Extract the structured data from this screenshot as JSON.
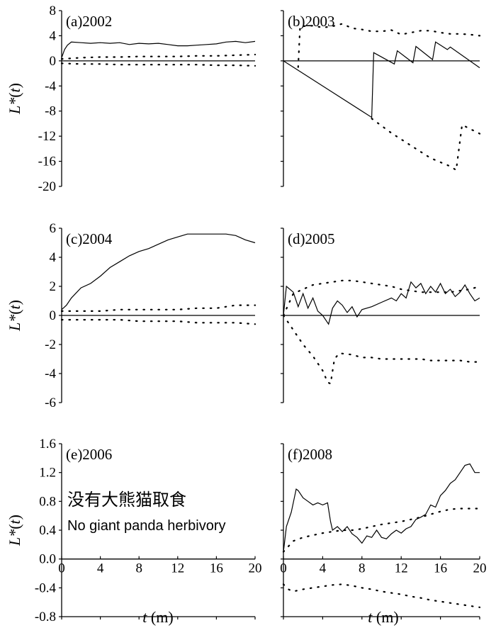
{
  "chart_data": [
    {
      "type": "line",
      "label": "(a)2002",
      "ylim": [
        -20,
        8
      ],
      "yticks": [
        "8",
        "4",
        "0",
        "-4",
        "-8",
        "-12",
        "-16",
        "-20"
      ],
      "xlim": [
        0,
        20
      ],
      "xticks": [],
      "series": [
        {
          "role": "L(t)",
          "style": "solid",
          "x": [
            0,
            0.3,
            0.6,
            1,
            2,
            3,
            4,
            5,
            6,
            7,
            8,
            9,
            10,
            11,
            12,
            13,
            14,
            15,
            16,
            17,
            18,
            19,
            20
          ],
          "y": [
            0.5,
            1.8,
            2.5,
            3.0,
            2.9,
            2.8,
            2.9,
            2.8,
            2.9,
            2.6,
            2.8,
            2.7,
            2.8,
            2.6,
            2.4,
            2.4,
            2.5,
            2.6,
            2.7,
            3.0,
            3.1,
            2.9,
            3.1
          ]
        },
        {
          "role": "upper envelope",
          "style": "dotted",
          "x": [
            0,
            2,
            4,
            6,
            8,
            10,
            12,
            14,
            16,
            18,
            20
          ],
          "y": [
            0.3,
            0.5,
            0.6,
            0.6,
            0.7,
            0.7,
            0.7,
            0.8,
            0.8,
            0.9,
            1.0
          ]
        },
        {
          "role": "lower envelope",
          "style": "dotted",
          "x": [
            0,
            2,
            4,
            6,
            8,
            10,
            12,
            14,
            16,
            18,
            20
          ],
          "y": [
            -0.4,
            -0.5,
            -0.5,
            -0.6,
            -0.6,
            -0.6,
            -0.6,
            -0.6,
            -0.7,
            -0.7,
            -0.8
          ]
        }
      ]
    },
    {
      "type": "line",
      "label": "(b)2003",
      "ylim": [
        -20,
        8
      ],
      "yticks": [],
      "xlim": [
        0,
        20
      ],
      "xticks": [],
      "series": [
        {
          "role": "L(t)",
          "style": "solid",
          "x": [
            0,
            9,
            9.2,
            11.3,
            11.6,
            13.2,
            13.5,
            15.2,
            15.5,
            16.7,
            17.0,
            20
          ],
          "y": [
            0,
            -9,
            1.3,
            -0.5,
            1.6,
            -0.3,
            2.3,
            0.2,
            3.0,
            1.8,
            2.2,
            -1.1
          ]
        },
        {
          "role": "upper envelope",
          "style": "dotted",
          "x": [
            1.5,
            1.7,
            3,
            4,
            5,
            6,
            7,
            8,
            9,
            10,
            11,
            12,
            13,
            14,
            15,
            16,
            17,
            18,
            19,
            20
          ],
          "y": [
            -1,
            5.5,
            5.6,
            5.3,
            5.5,
            5.9,
            5.2,
            5.0,
            4.7,
            4.7,
            4.9,
            4.2,
            4.5,
            4.8,
            4.8,
            4.5,
            4.3,
            4.3,
            4.2,
            4.0
          ]
        },
        {
          "role": "lower envelope",
          "style": "dotted",
          "x": [
            9,
            11,
            13,
            15,
            17,
            17.6,
            18.2,
            18.6,
            20
          ],
          "y": [
            -9.2,
            -11.5,
            -13.5,
            -15.5,
            -16.8,
            -17.4,
            -10.2,
            -10.5,
            -11.6
          ]
        }
      ]
    },
    {
      "type": "line",
      "label": "(c)2004",
      "ylim": [
        -6,
        6
      ],
      "yticks": [
        "6",
        "4",
        "2",
        "0",
        "-2",
        "-4",
        "-6"
      ],
      "xlim": [
        0,
        20
      ],
      "xticks": [],
      "series": [
        {
          "role": "L(t)",
          "style": "solid",
          "x": [
            0,
            0.5,
            1,
            2,
            3,
            4,
            5,
            6,
            7,
            8,
            9,
            10,
            11,
            12,
            13,
            14,
            15,
            16,
            17,
            18,
            19,
            20
          ],
          "y": [
            0.4,
            0.7,
            1.2,
            1.9,
            2.2,
            2.7,
            3.3,
            3.7,
            4.1,
            4.4,
            4.6,
            4.9,
            5.2,
            5.4,
            5.6,
            5.6,
            5.6,
            5.6,
            5.6,
            5.5,
            5.2,
            5.0
          ]
        },
        {
          "role": "upper envelope",
          "style": "dotted",
          "x": [
            0,
            2,
            4,
            6,
            8,
            10,
            12,
            14,
            16,
            18,
            20
          ],
          "y": [
            0.3,
            0.3,
            0.3,
            0.4,
            0.4,
            0.4,
            0.4,
            0.5,
            0.5,
            0.7,
            0.7
          ]
        },
        {
          "role": "lower envelope",
          "style": "dotted",
          "x": [
            0,
            2,
            4,
            6,
            8,
            10,
            12,
            14,
            16,
            18,
            20
          ],
          "y": [
            -0.3,
            -0.3,
            -0.3,
            -0.3,
            -0.4,
            -0.4,
            -0.4,
            -0.5,
            -0.5,
            -0.5,
            -0.6
          ]
        }
      ]
    },
    {
      "type": "line",
      "label": "(d)2005",
      "ylim": [
        -6,
        6
      ],
      "yticks": [],
      "xlim": [
        0,
        20
      ],
      "xticks": [],
      "series": [
        {
          "role": "L(t)",
          "style": "solid",
          "x": [
            0,
            0.3,
            1,
            1.5,
            2,
            2.5,
            3,
            3.5,
            4,
            4.6,
            5,
            5.5,
            6,
            6.5,
            7,
            7.5,
            8,
            9,
            10,
            11,
            11.5,
            12,
            12.5,
            13,
            13.5,
            14,
            14.5,
            15,
            15.5,
            16,
            16.5,
            17,
            17.5,
            18,
            18.5,
            19,
            19.5,
            20
          ],
          "y": [
            0,
            2.0,
            1.6,
            0.6,
            1.5,
            0.5,
            1.2,
            0.3,
            0.0,
            -0.6,
            0.5,
            1.0,
            0.7,
            0.2,
            0.6,
            -0.1,
            0.4,
            0.6,
            0.9,
            1.2,
            1.0,
            1.5,
            1.2,
            2.3,
            1.9,
            2.2,
            1.5,
            2.0,
            1.6,
            2.2,
            1.5,
            1.8,
            1.3,
            1.6,
            2.1,
            1.5,
            1.0,
            1.2
          ]
        },
        {
          "role": "upper envelope",
          "style": "dotted",
          "x": [
            0,
            1,
            2,
            3,
            4,
            5,
            6,
            7,
            8,
            9,
            10,
            11,
            12,
            13,
            14,
            15,
            16,
            17,
            18,
            19,
            20
          ],
          "y": [
            0,
            1.5,
            1.8,
            2.1,
            2.2,
            2.3,
            2.4,
            2.4,
            2.3,
            2.2,
            2.1,
            2.0,
            1.8,
            1.7,
            1.6,
            1.6,
            1.6,
            1.6,
            1.7,
            1.8,
            2.0
          ]
        },
        {
          "role": "lower envelope",
          "style": "dotted",
          "x": [
            0,
            1,
            2,
            3,
            4,
            4.5,
            4.8,
            5.2,
            5.7,
            7,
            8,
            9,
            10,
            11,
            12,
            13,
            14,
            15,
            16,
            17,
            18,
            19,
            20
          ],
          "y": [
            0,
            -1.0,
            -2.0,
            -2.8,
            -3.8,
            -4.6,
            -4.7,
            -3.0,
            -2.6,
            -2.7,
            -2.9,
            -2.9,
            -3.0,
            -3.0,
            -3.0,
            -3.0,
            -3.0,
            -3.1,
            -3.1,
            -3.1,
            -3.1,
            -3.2,
            -3.2
          ]
        }
      ]
    },
    {
      "type": "line",
      "label": "(e)2006",
      "ylim": [
        -0.8,
        1.6
      ],
      "yticks": [
        "1.6",
        "1.2",
        "0.8",
        "0.4",
        "0.0",
        "-0.4",
        "-0.8"
      ],
      "xlim": [
        0,
        20
      ],
      "xticks": [
        "0",
        "4",
        "8",
        "12",
        "16",
        "20"
      ],
      "annotation_cn": "没有大熊猫取食",
      "annotation_en": "No  giant panda herbivory",
      "series": []
    },
    {
      "type": "line",
      "label": "(f)2008",
      "ylim": [
        -0.8,
        1.6
      ],
      "yticks": [],
      "xlim": [
        0,
        20
      ],
      "xticks": [
        "0",
        "4",
        "8",
        "12",
        "16",
        "20"
      ],
      "series": [
        {
          "role": "L(t)",
          "style": "solid",
          "x": [
            0,
            0.3,
            0.8,
            1.3,
            1.5,
            2,
            2.5,
            3,
            3.5,
            4,
            4.5,
            4.8,
            5,
            5.5,
            6,
            6.5,
            7,
            7.5,
            8,
            8.5,
            9,
            9.5,
            10,
            10.5,
            11,
            11.5,
            12,
            12.5,
            13,
            13.5,
            14,
            14.5,
            15,
            15.5,
            16,
            16.5,
            17,
            17.5,
            18,
            18.5,
            19,
            19.5,
            20
          ],
          "y": [
            0.1,
            0.45,
            0.65,
            0.97,
            0.95,
            0.85,
            0.8,
            0.75,
            0.78,
            0.75,
            0.78,
            0.52,
            0.4,
            0.45,
            0.38,
            0.45,
            0.35,
            0.3,
            0.22,
            0.32,
            0.3,
            0.4,
            0.3,
            0.28,
            0.35,
            0.4,
            0.36,
            0.42,
            0.45,
            0.55,
            0.58,
            0.62,
            0.75,
            0.72,
            0.88,
            0.95,
            1.05,
            1.1,
            1.2,
            1.3,
            1.32,
            1.2,
            1.2
          ]
        },
        {
          "role": "upper envelope",
          "style": "dotted",
          "x": [
            0,
            1,
            2,
            3,
            4,
            5,
            6,
            7,
            8,
            9,
            10,
            11,
            12,
            13,
            14,
            15,
            16,
            17,
            18,
            19,
            20
          ],
          "y": [
            0.1,
            0.25,
            0.3,
            0.33,
            0.36,
            0.38,
            0.4,
            0.4,
            0.42,
            0.45,
            0.48,
            0.5,
            0.52,
            0.55,
            0.58,
            0.62,
            0.66,
            0.69,
            0.7,
            0.7,
            0.7
          ]
        },
        {
          "role": "lower envelope",
          "style": "dotted",
          "x": [
            0,
            0.5,
            1,
            2,
            3,
            4,
            5,
            6,
            7,
            8,
            9,
            10,
            11,
            12,
            13,
            14,
            15,
            16,
            17,
            18,
            19,
            20
          ],
          "y": [
            -0.35,
            -0.42,
            -0.45,
            -0.42,
            -0.4,
            -0.38,
            -0.36,
            -0.35,
            -0.37,
            -0.4,
            -0.42,
            -0.45,
            -0.47,
            -0.49,
            -0.52,
            -0.54,
            -0.57,
            -0.59,
            -0.61,
            -0.63,
            -0.65,
            -0.67
          ]
        }
      ]
    }
  ],
  "axes_text": {
    "ylabel_main": "L*",
    "ylabel_paren_open": "(",
    "ylabel_var": "t",
    "ylabel_paren_close": ")",
    "xlabel_var": "t",
    "xlabel_unit": " (m)"
  }
}
